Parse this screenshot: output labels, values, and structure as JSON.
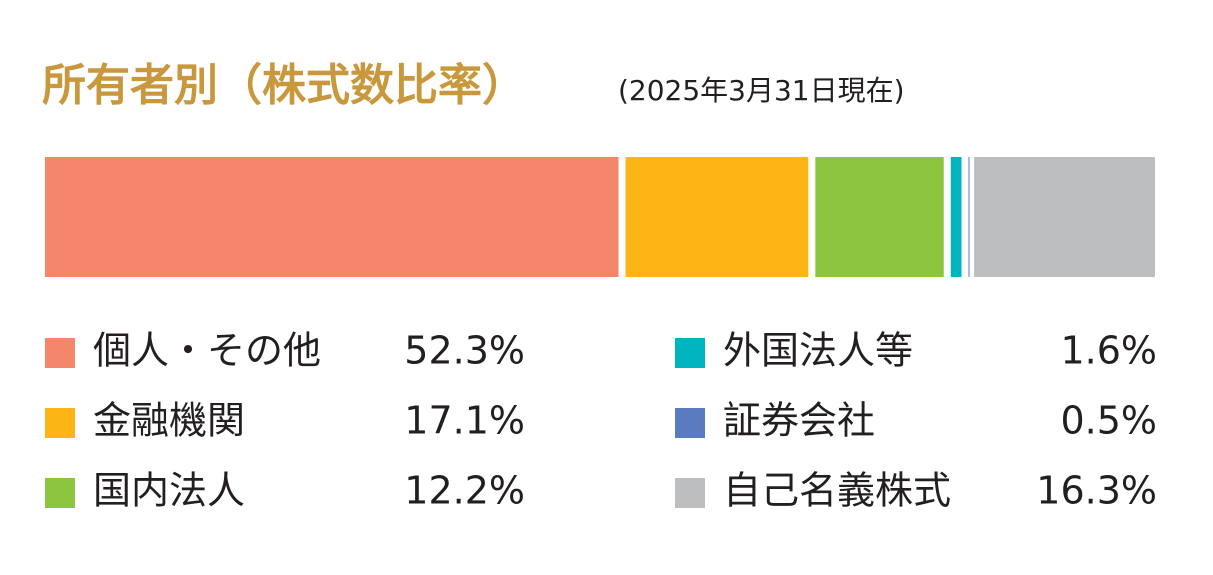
{
  "chart_data": {
    "type": "stacked-bar",
    "title": "所有者別（株式数比率）",
    "subtitle": "(2025年3月31日現在)",
    "xlim": [
      0,
      100
    ],
    "series": [
      {
        "name": "個人・その他",
        "color": "#f4876a",
        "values": [
          52.3
        ],
        "value_labels": [
          "52.3%"
        ]
      },
      {
        "name": "金融機関",
        "color": "#fdb515",
        "values": [
          17.1
        ],
        "value_labels": [
          "17.1%"
        ]
      },
      {
        "name": "国内法人",
        "color": "#8cc63f",
        "values": [
          12.2
        ],
        "value_labels": [
          "12.2%"
        ]
      },
      {
        "name": "外国法人等",
        "color": "#00b5bf",
        "values": [
          1.6
        ],
        "value_labels": [
          "1.6%"
        ]
      },
      {
        "name": "証券会社",
        "color": "#5a7bbf",
        "values": [
          0.5
        ],
        "value_labels": [
          "0.5%"
        ]
      },
      {
        "name": "自己名義株式",
        "color": "#bdbec0",
        "values": [
          16.3
        ],
        "value_labels": [
          "16.3%"
        ]
      }
    ]
  }
}
